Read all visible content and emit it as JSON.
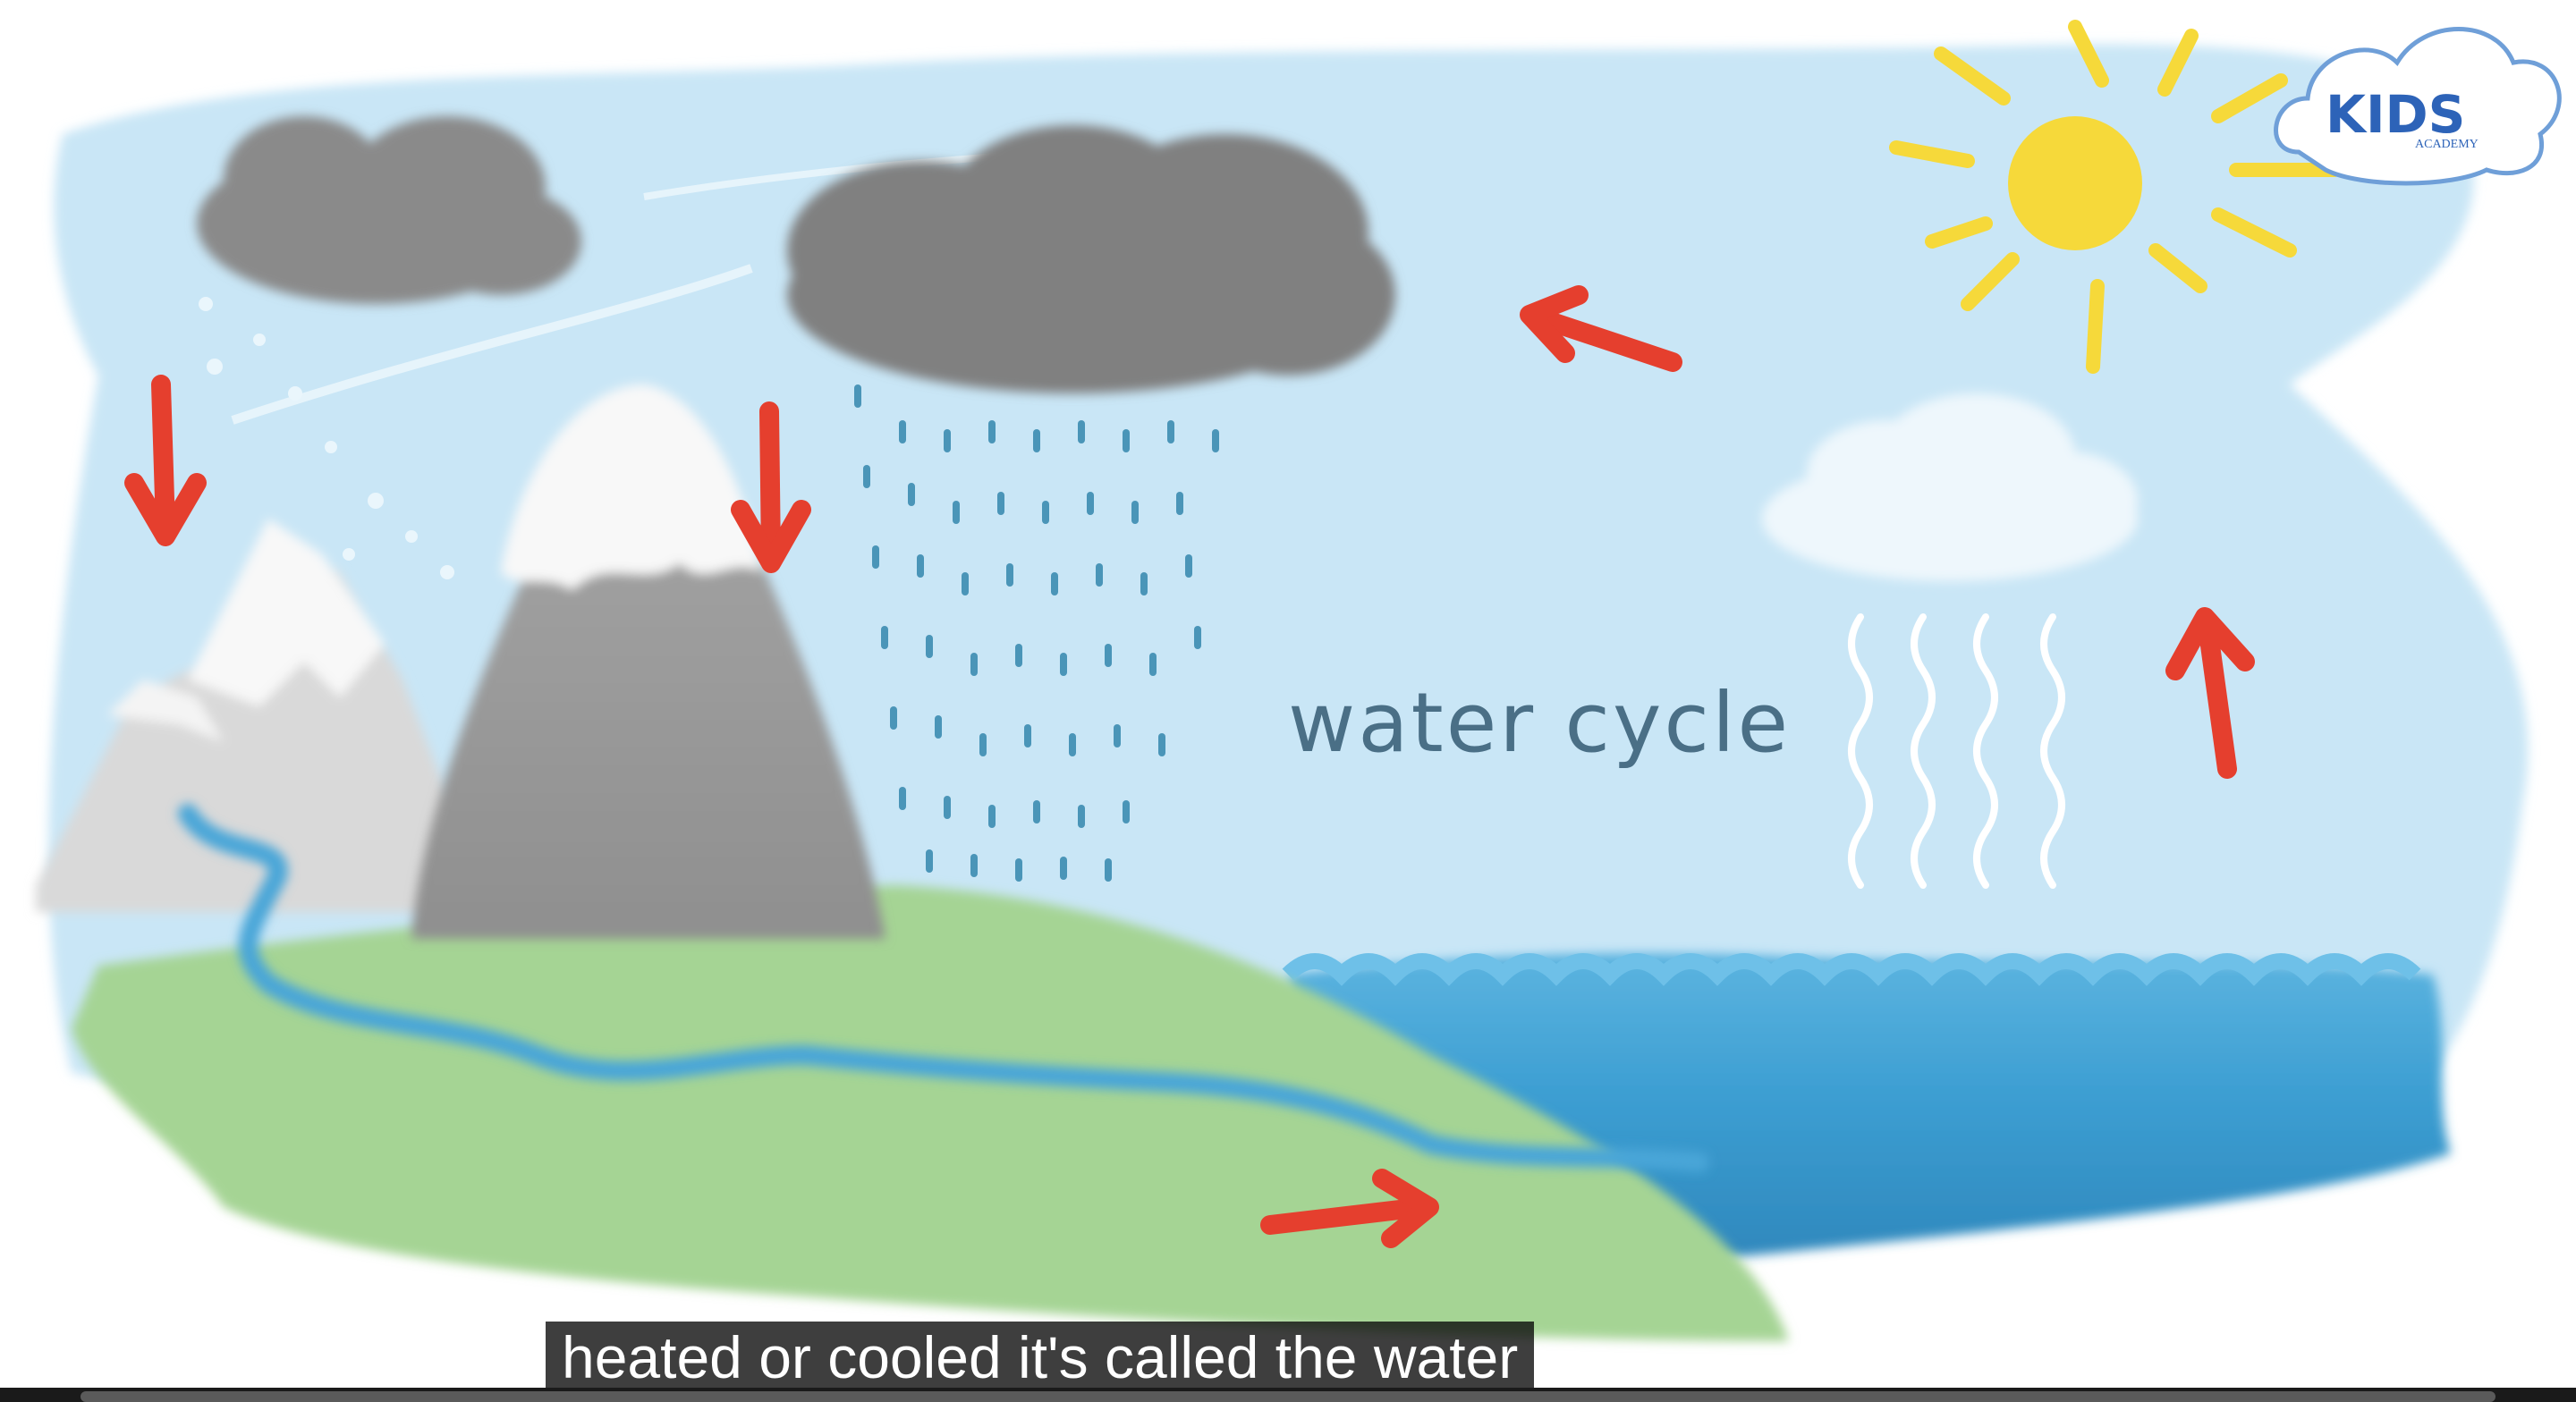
{
  "video": {
    "scene_title": "water cycle",
    "logo": {
      "text": "KIDS",
      "subtext": "ACADEMY"
    },
    "caption": "heated or cooled it's called the water"
  },
  "colors": {
    "sky": "#c9e6f6",
    "cloud_dark": "#8e8e8e",
    "mountain": "#9e9e9e",
    "grass": "#a5d494",
    "water": "#4aa6d8",
    "deep_water": "#2f8dc4",
    "sun": "#f6d93a",
    "arrow": "#e53f2e",
    "rain": "#4a95b8"
  }
}
